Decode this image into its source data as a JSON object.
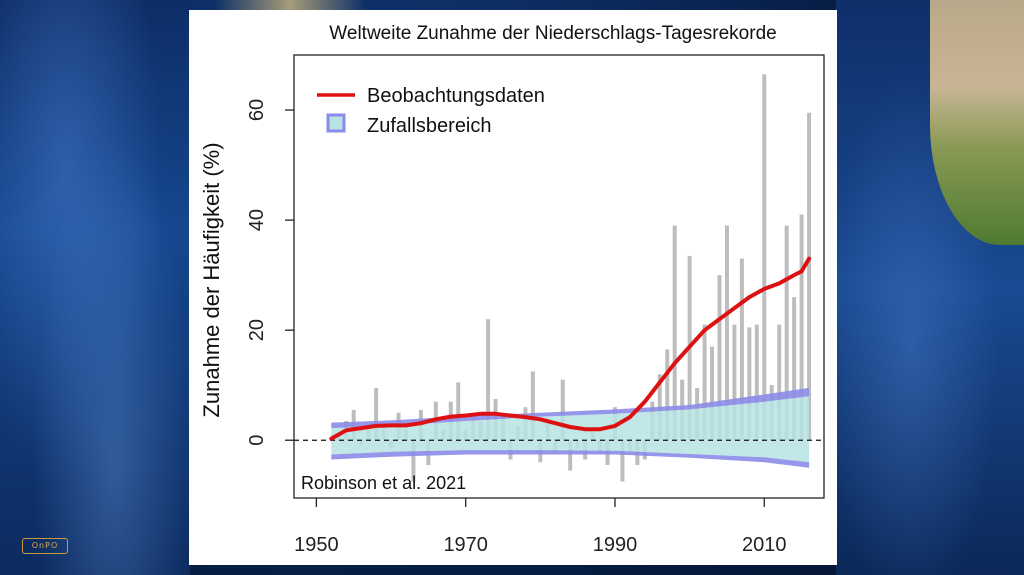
{
  "background": {
    "logo_text": "OnPO"
  },
  "chart_data": {
    "type": "bar",
    "title": "Weltweite Zunahme der Niederschlags-Tagesrekorde",
    "xlabel": "",
    "ylabel": "Zunahme der Häufigkeit (%)",
    "xlim": [
      1947,
      2018
    ],
    "ylim": [
      -10.5,
      70
    ],
    "xticks": [
      1950,
      1970,
      1990,
      2010
    ],
    "yticks": [
      0,
      20,
      40,
      60
    ],
    "annotation": "Robinson et al. 2021",
    "legend_position": "top-left",
    "zero_line": "dashed",
    "colors": {
      "bars": "#bdbdbd",
      "line": "#dd1111",
      "band_fill": "#b6e3e3",
      "band_edge": "#8b8be8"
    },
    "bars": {
      "x": [
        1953,
        1954,
        1955,
        1956,
        1957,
        1958,
        1959,
        1960,
        1961,
        1962,
        1963,
        1964,
        1965,
        1966,
        1967,
        1968,
        1969,
        1970,
        1971,
        1972,
        1973,
        1974,
        1975,
        1976,
        1977,
        1978,
        1979,
        1980,
        1981,
        1982,
        1983,
        1984,
        1985,
        1986,
        1987,
        1988,
        1989,
        1990,
        1991,
        1992,
        1993,
        1994,
        1995,
        1996,
        1997,
        1998,
        1999,
        2000,
        2001,
        2002,
        2003,
        2004,
        2005,
        2006,
        2007,
        2008,
        2009,
        2010,
        2011,
        2012,
        2013,
        2014,
        2015,
        2016
      ],
      "values": [
        1,
        3.5,
        5.5,
        -1,
        2.5,
        9.5,
        3,
        -1.5,
        5,
        2,
        -7.5,
        5.5,
        -4.5,
        7,
        2,
        7,
        10.5,
        2,
        4,
        3.5,
        22,
        7.5,
        4.5,
        -3.5,
        2.5,
        6,
        12.5,
        -4,
        3,
        -2,
        11,
        -5.5,
        -1.5,
        -3.5,
        2,
        -2,
        -4.5,
        6,
        -7.5,
        -2,
        -4.5,
        -3.5,
        7,
        12,
        16.5,
        39,
        11,
        33.5,
        9.5,
        21,
        17,
        30,
        39,
        21,
        33,
        20.5,
        21,
        66.5,
        10,
        21,
        39,
        26,
        41,
        59.5
      ]
    },
    "series": [
      {
        "name": "Beobachtungsdaten",
        "x": [
          1952,
          1954,
          1956,
          1958,
          1960,
          1962,
          1964,
          1966,
          1968,
          1970,
          1972,
          1974,
          1976,
          1978,
          1980,
          1982,
          1984,
          1986,
          1988,
          1990,
          1992,
          1994,
          1996,
          1998,
          2000,
          2002,
          2004,
          2006,
          2008,
          2010,
          2012,
          2014,
          2015,
          2016
        ],
        "values": [
          0.3,
          1.8,
          2.2,
          2.6,
          2.7,
          2.7,
          3.1,
          3.8,
          4.3,
          4.5,
          4.8,
          4.8,
          4.5,
          4.2,
          3.8,
          3.1,
          2.4,
          2.0,
          2.0,
          2.6,
          4.2,
          7.0,
          10.5,
          14.0,
          17.0,
          20.0,
          22.0,
          24.0,
          26.0,
          27.5,
          28.5,
          30.0,
          30.7,
          33.0
        ]
      }
    ],
    "band": {
      "name": "Zufallsbereich",
      "x": [
        1952,
        1960,
        1970,
        1980,
        1990,
        2000,
        2010,
        2016
      ],
      "upper": [
        3.2,
        3.6,
        4.4,
        5.0,
        5.6,
        6.4,
        8.3,
        9.5
      ],
      "upper_inner": [
        2.2,
        2.6,
        3.5,
        4.3,
        4.8,
        5.6,
        7.0,
        8.0
      ],
      "lower": [
        -3.5,
        -3.0,
        -2.6,
        -2.6,
        -2.6,
        -3.2,
        -4.0,
        -5.0
      ],
      "lower_inner": [
        -2.6,
        -2.1,
        -1.8,
        -1.8,
        -1.9,
        -2.5,
        -3.1,
        -4.0
      ]
    }
  }
}
